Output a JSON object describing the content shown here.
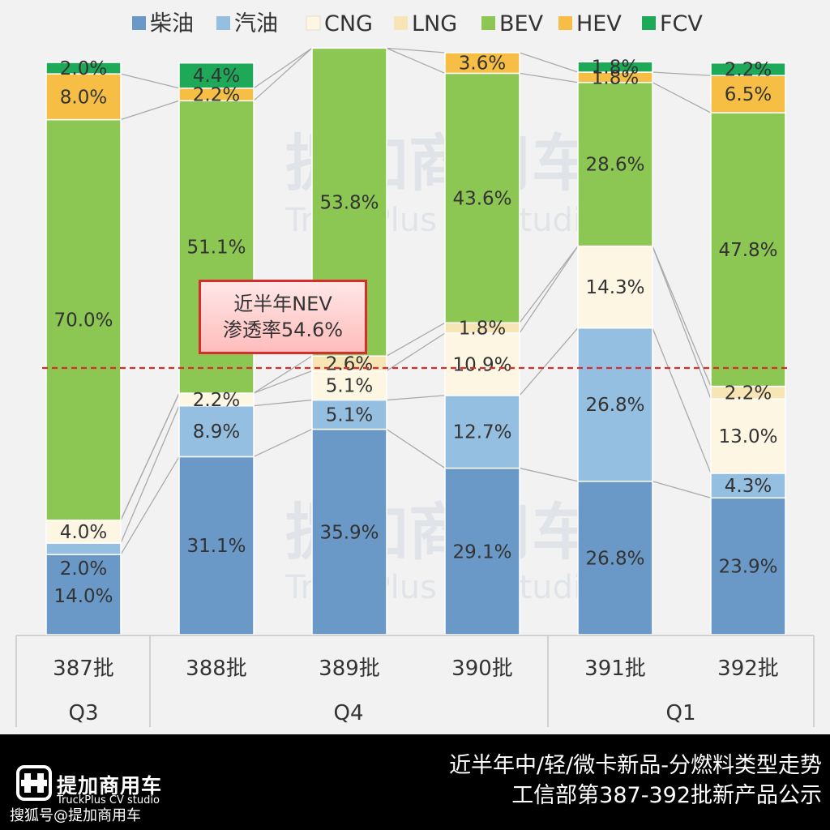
{
  "chart_data": {
    "type": "bar",
    "stacked": true,
    "normalized_percent": true,
    "categories": [
      "387批",
      "388批",
      "389批",
      "390批",
      "391批",
      "392批"
    ],
    "category_groups": [
      {
        "label": "Q3",
        "categories": [
          "387批"
        ]
      },
      {
        "label": "Q4",
        "categories": [
          "388批",
          "389批",
          "390批"
        ]
      },
      {
        "label": "Q1",
        "categories": [
          "391批",
          "392批"
        ]
      }
    ],
    "series": [
      {
        "name": "柴油",
        "color": "#6b99c7",
        "values": [
          14.0,
          31.1,
          35.9,
          29.1,
          26.8,
          23.9
        ],
        "labels": [
          "14.0%",
          "31.1%",
          "35.9%",
          "29.1%",
          "26.8%",
          "23.9%"
        ]
      },
      {
        "name": "汽油",
        "color": "#95bfe0",
        "values": [
          2.0,
          8.9,
          5.1,
          12.7,
          26.8,
          4.3
        ],
        "labels": [
          "2.0%",
          "8.9%",
          "5.1%",
          "12.7%",
          "26.8%",
          "4.3%"
        ]
      },
      {
        "name": "CNG",
        "color": "#fcf6e3",
        "values": [
          4.0,
          2.2,
          5.1,
          10.9,
          14.3,
          13.0
        ],
        "labels": [
          "4.0%",
          "2.2%",
          "5.1%",
          "10.9%",
          "14.3%",
          "13.0%"
        ]
      },
      {
        "name": "LNG",
        "color": "#f7e5b5",
        "values": [
          0,
          0,
          2.6,
          1.8,
          0,
          2.2
        ],
        "labels": [
          "",
          "",
          "2.6%",
          "1.8%",
          "",
          "2.2%"
        ]
      },
      {
        "name": "BEV",
        "color": "#8cc653",
        "values": [
          70.0,
          51.1,
          53.8,
          43.6,
          28.6,
          47.8
        ],
        "labels": [
          "70.0%",
          "51.1%",
          "53.8%",
          "43.6%",
          "28.6%",
          "47.8%"
        ]
      },
      {
        "name": "HEV",
        "color": "#f6be45",
        "values": [
          8.0,
          2.2,
          0,
          3.6,
          1.8,
          6.5
        ],
        "labels": [
          "8.0%",
          "2.2%",
          "",
          "3.6%",
          "1.8%",
          "6.5%"
        ]
      },
      {
        "name": "FCV",
        "color": "#1da958",
        "values": [
          2.0,
          4.4,
          0,
          0,
          1.8,
          2.2
        ],
        "labels": [
          "2.0%",
          "4.4%",
          "",
          "",
          "1.8%",
          "2.2%"
        ]
      }
    ],
    "ylim": [
      0,
      100
    ],
    "reference_line": {
      "value": 46.6,
      "color": "#d62d2d",
      "style": "dashed"
    },
    "annotation": {
      "line1": "近半年NEV",
      "line2": "渗透率54.6%"
    },
    "legend": "top",
    "grid": false,
    "xlabel": "",
    "ylabel": ""
  },
  "watermark": {
    "cn": "提加商用车",
    "en": "TruckPlus CV studio"
  },
  "footer": {
    "brand_cn": "提加商用车",
    "brand_en": "TruckPlus CV studio",
    "credit": "搜狐号@提加商用车",
    "title_line1": "近半年中/轻/微卡新品-分燃料类型走势",
    "title_line2": "工信部第387-392批新产品公示"
  },
  "colors": {
    "connector": "#aaaaaa",
    "background": "#f2f2f2",
    "footer_bg": "#000000",
    "divider": "#c8c8c8"
  }
}
